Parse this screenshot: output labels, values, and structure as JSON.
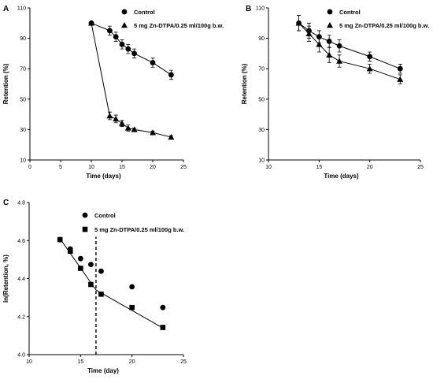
{
  "chart_data": [
    {
      "panel": "A",
      "type": "line",
      "xlabel": "Time (days)",
      "ylabel": "Retention (%)",
      "xlim": [
        0,
        25
      ],
      "ylim": [
        10,
        110
      ],
      "xticks": [
        0,
        5,
        10,
        15,
        20,
        25
      ],
      "yticks": [
        10,
        30,
        50,
        70,
        90,
        110
      ],
      "legend_position": "top-right",
      "series": [
        {
          "name": "Control",
          "marker": "circle",
          "x": [
            10,
            13,
            14,
            15,
            16,
            17,
            20,
            23
          ],
          "y": [
            100,
            95,
            91,
            86,
            83,
            80,
            74,
            66
          ],
          "error": [
            0,
            3,
            3,
            3,
            3,
            3,
            3,
            3
          ]
        },
        {
          "name": "5 mg Zn-DTPA/0.25 ml/100g b.w.",
          "marker": "triangle",
          "x": [
            10,
            13,
            14,
            15,
            16,
            17,
            20,
            23
          ],
          "y": [
            100,
            39,
            37,
            34,
            31,
            30,
            28,
            25
          ],
          "error": [
            0,
            2.5,
            2.5,
            2,
            2,
            1,
            1,
            1
          ]
        }
      ]
    },
    {
      "panel": "B",
      "type": "line",
      "xlabel": "Time (days)",
      "ylabel": "Retention (%)",
      "xlim": [
        10,
        25
      ],
      "ylim": [
        10,
        110
      ],
      "xticks": [
        10,
        15,
        20,
        25
      ],
      "yticks": [
        10,
        30,
        50,
        70,
        90,
        110
      ],
      "legend_position": "top-right",
      "series": [
        {
          "name": "Control",
          "marker": "circle",
          "x": [
            13,
            14,
            15,
            16,
            17,
            20,
            23
          ],
          "y": [
            100,
            95,
            91,
            88,
            85,
            78,
            70
          ],
          "error": [
            5,
            5,
            4,
            4,
            4,
            3,
            3
          ]
        },
        {
          "name": "5 mg Zn-DTPA/0.25 ml/100g b.w.",
          "marker": "triangle",
          "x": [
            13,
            14,
            15,
            16,
            17,
            20,
            23
          ],
          "y": [
            100,
            93,
            86,
            79,
            75,
            70,
            63
          ],
          "error": [
            5,
            5,
            5,
            5,
            4,
            3,
            3
          ]
        }
      ]
    },
    {
      "panel": "C",
      "type": "scatter",
      "xlabel": "Time (day)",
      "ylabel": "ln(Retention, %)",
      "xlim": [
        10,
        25
      ],
      "ylim": [
        4.0,
        4.8
      ],
      "xticks": [
        10,
        15,
        20,
        25
      ],
      "yticks": [
        4.0,
        4.2,
        4.4,
        4.6,
        4.8
      ],
      "legend_position": "top-right",
      "vline_x": 16.5,
      "series": [
        {
          "name": "Control",
          "marker": "circle",
          "x": [
            13,
            14,
            15,
            16,
            17,
            20,
            23
          ],
          "y": [
            4.605,
            4.556,
            4.505,
            4.474,
            4.439,
            4.357,
            4.248
          ]
        },
        {
          "name": "5 mg Zn-DTPA/0.25 ml/100g b.w.",
          "marker": "square",
          "x": [
            13,
            14,
            15,
            16,
            17,
            20,
            23
          ],
          "y": [
            4.605,
            4.544,
            4.454,
            4.369,
            4.318,
            4.248,
            4.143
          ]
        }
      ],
      "fit_lines": [
        {
          "x": [
            13,
            16.5
          ],
          "y": [
            4.61,
            4.34
          ]
        },
        {
          "x": [
            16.5,
            23
          ],
          "y": [
            4.34,
            4.14
          ]
        }
      ]
    }
  ]
}
